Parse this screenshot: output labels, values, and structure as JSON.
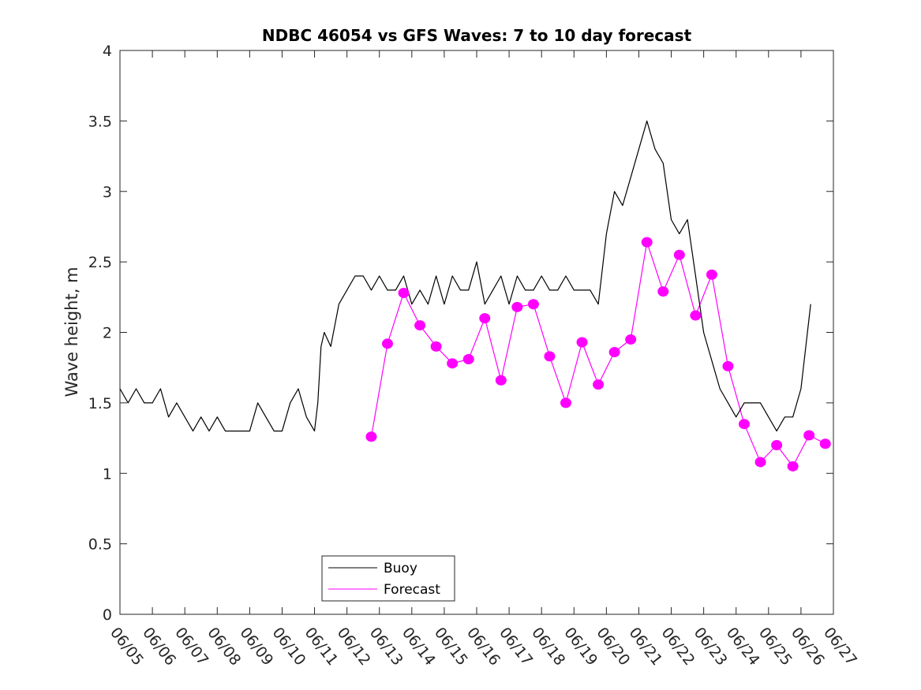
{
  "chart_data": {
    "type": "line",
    "title": "NDBC 46054 vs GFS Waves: 7 to 10 day forecast",
    "xlabel": "",
    "ylabel": "Wave height, m",
    "ylim": [
      0,
      4
    ],
    "yticks": [
      "0",
      "0.5",
      "1",
      "1.5",
      "2",
      "2.5",
      "3",
      "3.5",
      "4"
    ],
    "xlim": [
      0,
      22
    ],
    "xticks": [
      "06/05",
      "06/06",
      "06/07",
      "06/08",
      "06/09",
      "06/10",
      "06/11",
      "06/12",
      "06/13",
      "06/14",
      "06/15",
      "06/16",
      "06/17",
      "06/18",
      "06/19",
      "06/20",
      "06/21",
      "06/22",
      "06/23",
      "06/24",
      "06/25",
      "06/26",
      "06/27"
    ],
    "legend": {
      "placement": "bottom-center",
      "entries": [
        "Buoy",
        "Forecast"
      ]
    },
    "colors": {
      "buoy": "#000000",
      "forecast": "#ff00ff"
    },
    "series": [
      {
        "name": "Buoy",
        "color": "#000000",
        "x": [
          0.0,
          0.25,
          0.5,
          0.75,
          1.0,
          1.25,
          1.5,
          1.75,
          2.0,
          2.25,
          2.5,
          2.75,
          3.0,
          3.25,
          3.5,
          3.75,
          4.0,
          4.25,
          4.5,
          4.75,
          5.0,
          5.25,
          5.5,
          5.75,
          6.0,
          6.1,
          6.2,
          6.3,
          6.5,
          6.75,
          7.0,
          7.25,
          7.5,
          7.75,
          8.0,
          8.25,
          8.5,
          8.75,
          9.0,
          9.25,
          9.5,
          9.75,
          10.0,
          10.25,
          10.5,
          10.75,
          11.0,
          11.25,
          11.5,
          11.75,
          12.0,
          12.25,
          12.5,
          12.75,
          13.0,
          13.25,
          13.5,
          13.75,
          14.0,
          14.25,
          14.5,
          14.75,
          15.0,
          15.25,
          15.5,
          15.75,
          16.0,
          16.25,
          16.5,
          16.75,
          17.0,
          17.25,
          17.5,
          17.75,
          18.0,
          18.25,
          18.5,
          18.75,
          19.0,
          19.25,
          19.5,
          19.75,
          20.0,
          20.25,
          20.5,
          20.75,
          21.0,
          21.2,
          21.3
        ],
        "values": [
          1.6,
          1.5,
          1.6,
          1.5,
          1.5,
          1.6,
          1.4,
          1.5,
          1.4,
          1.3,
          1.4,
          1.3,
          1.4,
          1.3,
          1.3,
          1.3,
          1.3,
          1.5,
          1.4,
          1.3,
          1.3,
          1.5,
          1.6,
          1.4,
          1.3,
          1.5,
          1.9,
          2.0,
          1.9,
          2.2,
          2.3,
          2.4,
          2.4,
          2.3,
          2.4,
          2.3,
          2.3,
          2.4,
          2.2,
          2.3,
          2.2,
          2.4,
          2.2,
          2.4,
          2.3,
          2.3,
          2.5,
          2.2,
          2.3,
          2.4,
          2.2,
          2.4,
          2.3,
          2.3,
          2.4,
          2.3,
          2.3,
          2.4,
          2.3,
          2.3,
          2.3,
          2.2,
          2.7,
          3.0,
          2.9,
          3.1,
          3.3,
          3.5,
          3.3,
          3.2,
          2.8,
          2.7,
          2.8,
          2.4,
          2.0,
          1.8,
          1.6,
          1.5,
          1.4,
          1.5,
          1.5,
          1.5,
          1.4,
          1.3,
          1.4,
          1.4,
          1.6,
          2.0,
          2.2
        ]
      },
      {
        "name": "Forecast",
        "color": "#ff00ff",
        "x": [
          7.75,
          8.25,
          8.75,
          9.25,
          9.75,
          10.25,
          10.75,
          11.25,
          11.75,
          12.25,
          12.75,
          13.25,
          13.75,
          14.25,
          14.75,
          15.25,
          15.75,
          16.25,
          16.75,
          17.25,
          17.75,
          18.25,
          18.75,
          19.25,
          19.75,
          20.25,
          20.75,
          21.25,
          21.75
        ],
        "values": [
          1.26,
          1.92,
          2.28,
          2.05,
          1.9,
          1.78,
          1.81,
          2.1,
          1.66,
          2.18,
          2.2,
          1.83,
          1.5,
          1.93,
          1.63,
          1.86,
          1.95,
          2.64,
          2.29,
          2.55,
          2.12,
          2.41,
          1.76,
          1.35,
          1.08,
          1.2,
          1.05,
          1.27,
          1.21
        ]
      }
    ]
  }
}
